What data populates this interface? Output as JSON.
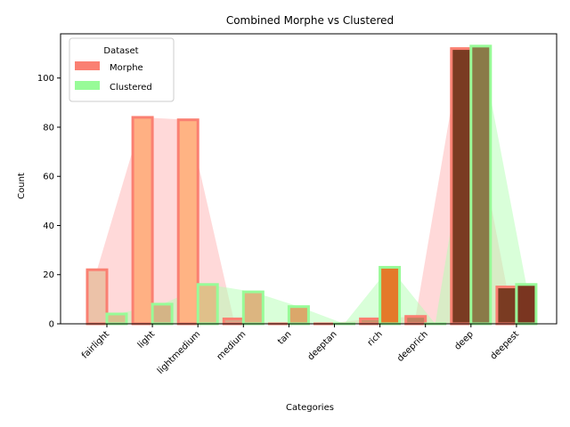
{
  "chart_data": {
    "type": "bar",
    "title": "Combined Morphe vs Clustered",
    "xlabel": "Categories",
    "ylabel": "Count",
    "ylim": [
      0,
      118
    ],
    "yticks": [
      0,
      20,
      40,
      60,
      80,
      100
    ],
    "grid": false,
    "legend": {
      "title": "Dataset",
      "placement": "top-left"
    },
    "categories": [
      "fairlight",
      "light",
      "lightmedium",
      "medium",
      "tan",
      "deeptan",
      "rich",
      "deeprich",
      "deep",
      "deepest"
    ],
    "series": [
      {
        "name": "Morphe",
        "values": [
          22,
          84,
          83,
          2,
          0,
          0,
          2,
          3,
          112,
          15
        ],
        "fill_colors": [
          "#ecc2a8",
          "#ffb083",
          "#ffb383",
          "#d4a888",
          "#c59478",
          "#b58868",
          "#c8926a",
          "#c08060",
          "#7a3b22",
          "#7a3b22"
        ],
        "edge_color": "#fa8072",
        "area_color": "#ffb3b3"
      },
      {
        "name": "Clustered",
        "values": [
          4,
          8,
          16,
          13,
          7,
          0,
          23,
          0,
          113,
          16
        ],
        "fill_colors": [
          "#d8c08e",
          "#d4b486",
          "#e0c08a",
          "#dcb580",
          "#dba76a",
          "#c68c5c",
          "#e4792a",
          "#b8734a",
          "#8a7a48",
          "#7a3520"
        ],
        "edge_color": "#98fb98",
        "area_color": "#b3ffb3"
      }
    ]
  }
}
